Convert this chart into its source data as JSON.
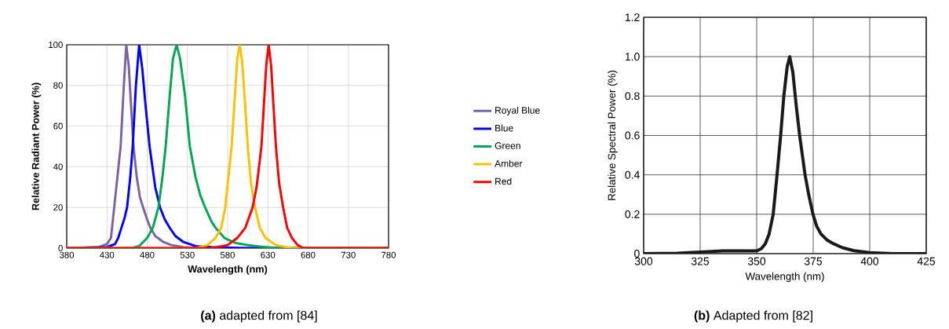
{
  "chart_data": [
    {
      "type": "line",
      "xlabel": "Wavelength (nm)",
      "ylabel": "Relative Radiant Power (%)",
      "xlim": [
        380,
        780
      ],
      "ylim": [
        0,
        100
      ],
      "xticks": [
        380,
        430,
        480,
        530,
        580,
        630,
        680,
        730,
        780
      ],
      "yticks": [
        0,
        20,
        40,
        60,
        80,
        100
      ],
      "grid": true,
      "legend": "right",
      "marker": "none",
      "line_style": "solid",
      "annotations": [
        "**(a)** adapted from [84]"
      ],
      "series": [
        {
          "name": "Royal Blue",
          "color": "#7b62a3",
          "x": [
            380,
            420,
            430,
            435,
            439,
            443,
            447,
            451,
            454,
            457,
            460,
            463,
            467,
            471,
            475,
            480,
            484,
            490,
            500,
            510,
            525,
            545,
            780
          ],
          "values": [
            0,
            0.5,
            2,
            5,
            20,
            35,
            50,
            80,
            100,
            90,
            70,
            50,
            35,
            25,
            20,
            14,
            10,
            6,
            3,
            1.5,
            0.5,
            0,
            0
          ]
        },
        {
          "name": "Blue",
          "color": "#0000ff",
          "x": [
            380,
            430,
            440,
            444,
            448,
            452,
            455,
            459,
            462,
            466,
            470,
            474,
            478,
            483,
            490,
            496,
            502,
            508,
            515,
            525,
            540,
            560,
            600,
            780
          ],
          "values": [
            0,
            0.5,
            2,
            5,
            10,
            15,
            20,
            35,
            50,
            80,
            100,
            88,
            70,
            50,
            30,
            20,
            14,
            10,
            6,
            3,
            1,
            0.5,
            0,
            0
          ]
        },
        {
          "name": "Green",
          "color": "#00a650",
          "x": [
            380,
            460,
            470,
            480,
            487,
            494,
            499,
            503,
            508,
            512,
            516.5,
            521,
            527,
            533,
            540,
            546,
            552,
            560,
            565,
            576,
            590,
            605,
            620,
            640,
            780
          ],
          "values": [
            0,
            0,
            1,
            5,
            10,
            20,
            35,
            50,
            75,
            93,
            100,
            93,
            75,
            50,
            35,
            26,
            20,
            13,
            10,
            5,
            2.5,
            1.5,
            0.8,
            0,
            0
          ]
        },
        {
          "name": "Amber",
          "color": "#ffc000",
          "x": [
            380,
            540,
            555,
            565,
            572,
            577,
            581,
            585,
            589,
            592,
            595,
            598,
            601,
            605,
            609,
            614,
            620,
            627,
            640,
            660,
            780
          ],
          "values": [
            0,
            0,
            1.5,
            5,
            10,
            20,
            35,
            50,
            75,
            93,
            100,
            92,
            75,
            50,
            32,
            20,
            10,
            5,
            1.5,
            0,
            0
          ]
        },
        {
          "name": "Red",
          "color": "#ff0000",
          "x": [
            380,
            560,
            580,
            592,
            602,
            611,
            616,
            619,
            622,
            625,
            628,
            631,
            634,
            637,
            640,
            644,
            649,
            654,
            660,
            667,
            674,
            780
          ],
          "values": [
            0,
            0,
            1.5,
            5,
            10,
            20,
            30,
            40,
            50,
            70,
            90,
            100,
            90,
            70,
            50,
            32,
            20,
            10,
            5,
            1.5,
            0,
            0
          ]
        }
      ]
    },
    {
      "type": "line",
      "xlabel": "Wavelength (nm)",
      "ylabel": "Relative Spectral Power (%)",
      "xlim": [
        300,
        425
      ],
      "ylim": [
        0,
        1.2
      ],
      "xticks": [
        300,
        325,
        350,
        375,
        400,
        425
      ],
      "yticks": [
        0,
        0.2,
        0.4,
        0.6,
        0.8,
        {
          "value": 1,
          "label": "1.0"
        },
        1.2
      ],
      "grid": true,
      "legend": false,
      "marker": "none",
      "line_style": "solid",
      "annotations": [
        "**(b)** Adapted from [82]"
      ],
      "series": [
        {
          "color": "#1a1a1a",
          "x": [
            300,
            315,
            325,
            335,
            345,
            350,
            352,
            353.8,
            355.5,
            357.3,
            359,
            360.6,
            362,
            363.5,
            364.6,
            366,
            367.5,
            369,
            371.4,
            373,
            374.9,
            376.5,
            378.4,
            381,
            384,
            388,
            393,
            400,
            410,
            425
          ],
          "values": [
            0,
            0.002,
            0.008,
            0.014,
            0.014,
            0.014,
            0.025,
            0.05,
            0.1,
            0.2,
            0.4,
            0.6,
            0.8,
            0.95,
            1,
            0.92,
            0.75,
            0.6,
            0.4,
            0.3,
            0.2,
            0.14,
            0.1,
            0.07,
            0.05,
            0.03,
            0.015,
            0.005,
            0,
            0
          ]
        }
      ]
    }
  ]
}
